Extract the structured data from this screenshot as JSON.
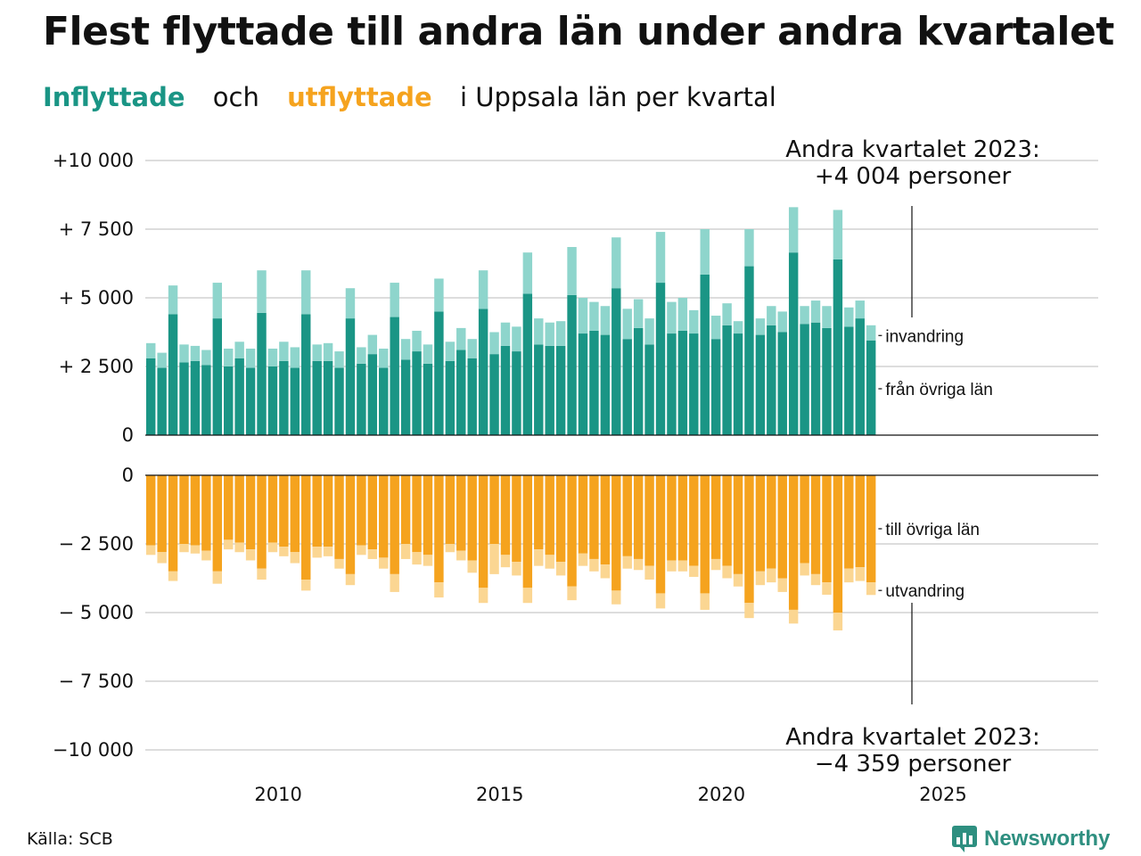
{
  "title": "Flest flyttade till andra län under andra kvartalet",
  "subtitle": {
    "inflow": "Inflyttade",
    "and": "och",
    "outflow": "utflyttade",
    "rest": "i Uppsala  län  per  kvartal"
  },
  "colors": {
    "in_main": "#1a9585",
    "in_light": "#8ed5cc",
    "out_main": "#f5a31e",
    "out_light": "#fbd692",
    "grid": "#dddddd",
    "logo": "#2e8f80"
  },
  "annotations": {
    "top_line1": "Andra kvartalet 2023:",
    "top_line2": "+4 004 personer",
    "bottom_line1": "Andra kvartalet 2023:",
    "bottom_line2": "−4 359 personer"
  },
  "source": "Källa: SCB",
  "logo_text": "Newsworthy",
  "logo_icon": "bar-chart-icon",
  "chart_data": {
    "type": "bar",
    "x_ticks": [
      2010,
      2015,
      2020,
      2025
    ],
    "x_range": [
      2007.0,
      2028.5
    ],
    "inflow_panel": {
      "ylim": [
        0,
        10000
      ],
      "y_ticks": [
        0,
        2500,
        5000,
        7500,
        10000
      ],
      "y_tick_labels": [
        "0",
        "+ 2 500",
        "+ 5 000",
        "+ 7 500",
        "+10 000"
      ],
      "series_labels": [
        "från övriga län",
        "invandring"
      ]
    },
    "outflow_panel": {
      "ylim": [
        -10000,
        0
      ],
      "y_ticks": [
        0,
        -2500,
        -5000,
        -7500,
        -10000
      ],
      "y_tick_labels": [
        "0",
        "− 2 500",
        "− 5 000",
        "− 7 500",
        "−10 000"
      ],
      "series_labels": [
        "till övriga län",
        "utvandring"
      ]
    },
    "quarters": [
      "2007 K1",
      "2007 K2",
      "2007 K3",
      "2007 K4",
      "2008 K1",
      "2008 K2",
      "2008 K3",
      "2008 K4",
      "2009 K1",
      "2009 K2",
      "2009 K3",
      "2009 K4",
      "2010 K1",
      "2010 K2",
      "2010 K3",
      "2010 K4",
      "2011 K1",
      "2011 K2",
      "2011 K3",
      "2011 K4",
      "2012 K1",
      "2012 K2",
      "2012 K3",
      "2012 K4",
      "2013 K1",
      "2013 K2",
      "2013 K3",
      "2013 K4",
      "2014 K1",
      "2014 K2",
      "2014 K3",
      "2014 K4",
      "2015 K1",
      "2015 K2",
      "2015 K3",
      "2015 K4",
      "2016 K1",
      "2016 K2",
      "2016 K3",
      "2016 K4",
      "2017 K1",
      "2017 K2",
      "2017 K3",
      "2017 K4",
      "2018 K1",
      "2018 K2",
      "2018 K3",
      "2018 K4",
      "2019 K1",
      "2019 K2",
      "2019 K3",
      "2019 K4",
      "2020 K1",
      "2020 K2",
      "2020 K3",
      "2020 K4",
      "2021 K1",
      "2021 K2",
      "2021 K3",
      "2021 K4",
      "2022 K1",
      "2022 K2",
      "2022 K3",
      "2022 K4",
      "2023 K1",
      "2023 K2"
    ],
    "series": [
      {
        "name": "från övriga län",
        "values": [
          2800,
          2450,
          4400,
          2650,
          2700,
          2550,
          4250,
          2500,
          2800,
          2450,
          4450,
          2500,
          2700,
          2450,
          4400,
          2700,
          2700,
          2450,
          4250,
          2600,
          2950,
          2450,
          4300,
          2750,
          3050,
          2600,
          4500,
          2700,
          3100,
          2800,
          4600,
          2950,
          3250,
          3050,
          5150,
          3300,
          3250,
          3250,
          5100,
          3700,
          3800,
          3650,
          5350,
          3500,
          3900,
          3300,
          5550,
          3700,
          3800,
          3700,
          5850,
          3500,
          4000,
          3700,
          6150,
          3650,
          4000,
          3750,
          6650,
          4050,
          4100,
          3900,
          6400,
          3950,
          4250,
          3450
        ]
      },
      {
        "name": "invandring",
        "values": [
          550,
          550,
          1050,
          650,
          550,
          550,
          1300,
          650,
          600,
          700,
          1550,
          650,
          700,
          750,
          1600,
          600,
          650,
          600,
          1100,
          600,
          700,
          700,
          1250,
          750,
          750,
          700,
          1200,
          700,
          800,
          700,
          1400,
          800,
          850,
          900,
          1500,
          950,
          850,
          900,
          1750,
          1300,
          1050,
          1050,
          1850,
          1100,
          1050,
          950,
          1850,
          1150,
          1200,
          850,
          1650,
          850,
          800,
          450,
          1350,
          600,
          700,
          750,
          1650,
          650,
          800,
          800,
          1800,
          700,
          650,
          550
        ]
      },
      {
        "name": "till övriga län",
        "values": [
          -2550,
          -2800,
          -3500,
          -2500,
          -2550,
          -2750,
          -3500,
          -2350,
          -2450,
          -2700,
          -3400,
          -2450,
          -2600,
          -2800,
          -3800,
          -2600,
          -2600,
          -3050,
          -3600,
          -2550,
          -2700,
          -3000,
          -3600,
          -2500,
          -2800,
          -2900,
          -3900,
          -2500,
          -2750,
          -3100,
          -4100,
          -2500,
          -2900,
          -3150,
          -4100,
          -2700,
          -2900,
          -3150,
          -4050,
          -2850,
          -3050,
          -3250,
          -4200,
          -2950,
          -3050,
          -3300,
          -4300,
          -3100,
          -3100,
          -3300,
          -4300,
          -3050,
          -3300,
          -3600,
          -4650,
          -3500,
          -3400,
          -3750,
          -4900,
          -3200,
          -3600,
          -3900,
          -5000,
          -3400,
          -3350,
          -3900
        ]
      },
      {
        "name": "utvandring",
        "values": [
          -350,
          -400,
          -350,
          -300,
          -300,
          -350,
          -450,
          -350,
          -350,
          -400,
          -400,
          -350,
          -350,
          -400,
          -400,
          -400,
          -350,
          -350,
          -400,
          -350,
          -350,
          -400,
          -650,
          -550,
          -450,
          -400,
          -550,
          -300,
          -350,
          -450,
          -550,
          -1100,
          -450,
          -500,
          -550,
          -600,
          -500,
          -500,
          -500,
          -450,
          -450,
          -500,
          -500,
          -450,
          -400,
          -500,
          -550,
          -400,
          -400,
          -400,
          -600,
          -400,
          -450,
          -450,
          -550,
          -500,
          -500,
          -500,
          -500,
          -450,
          -400,
          -450,
          -650,
          -500,
          -500,
          -459
        ]
      }
    ]
  }
}
